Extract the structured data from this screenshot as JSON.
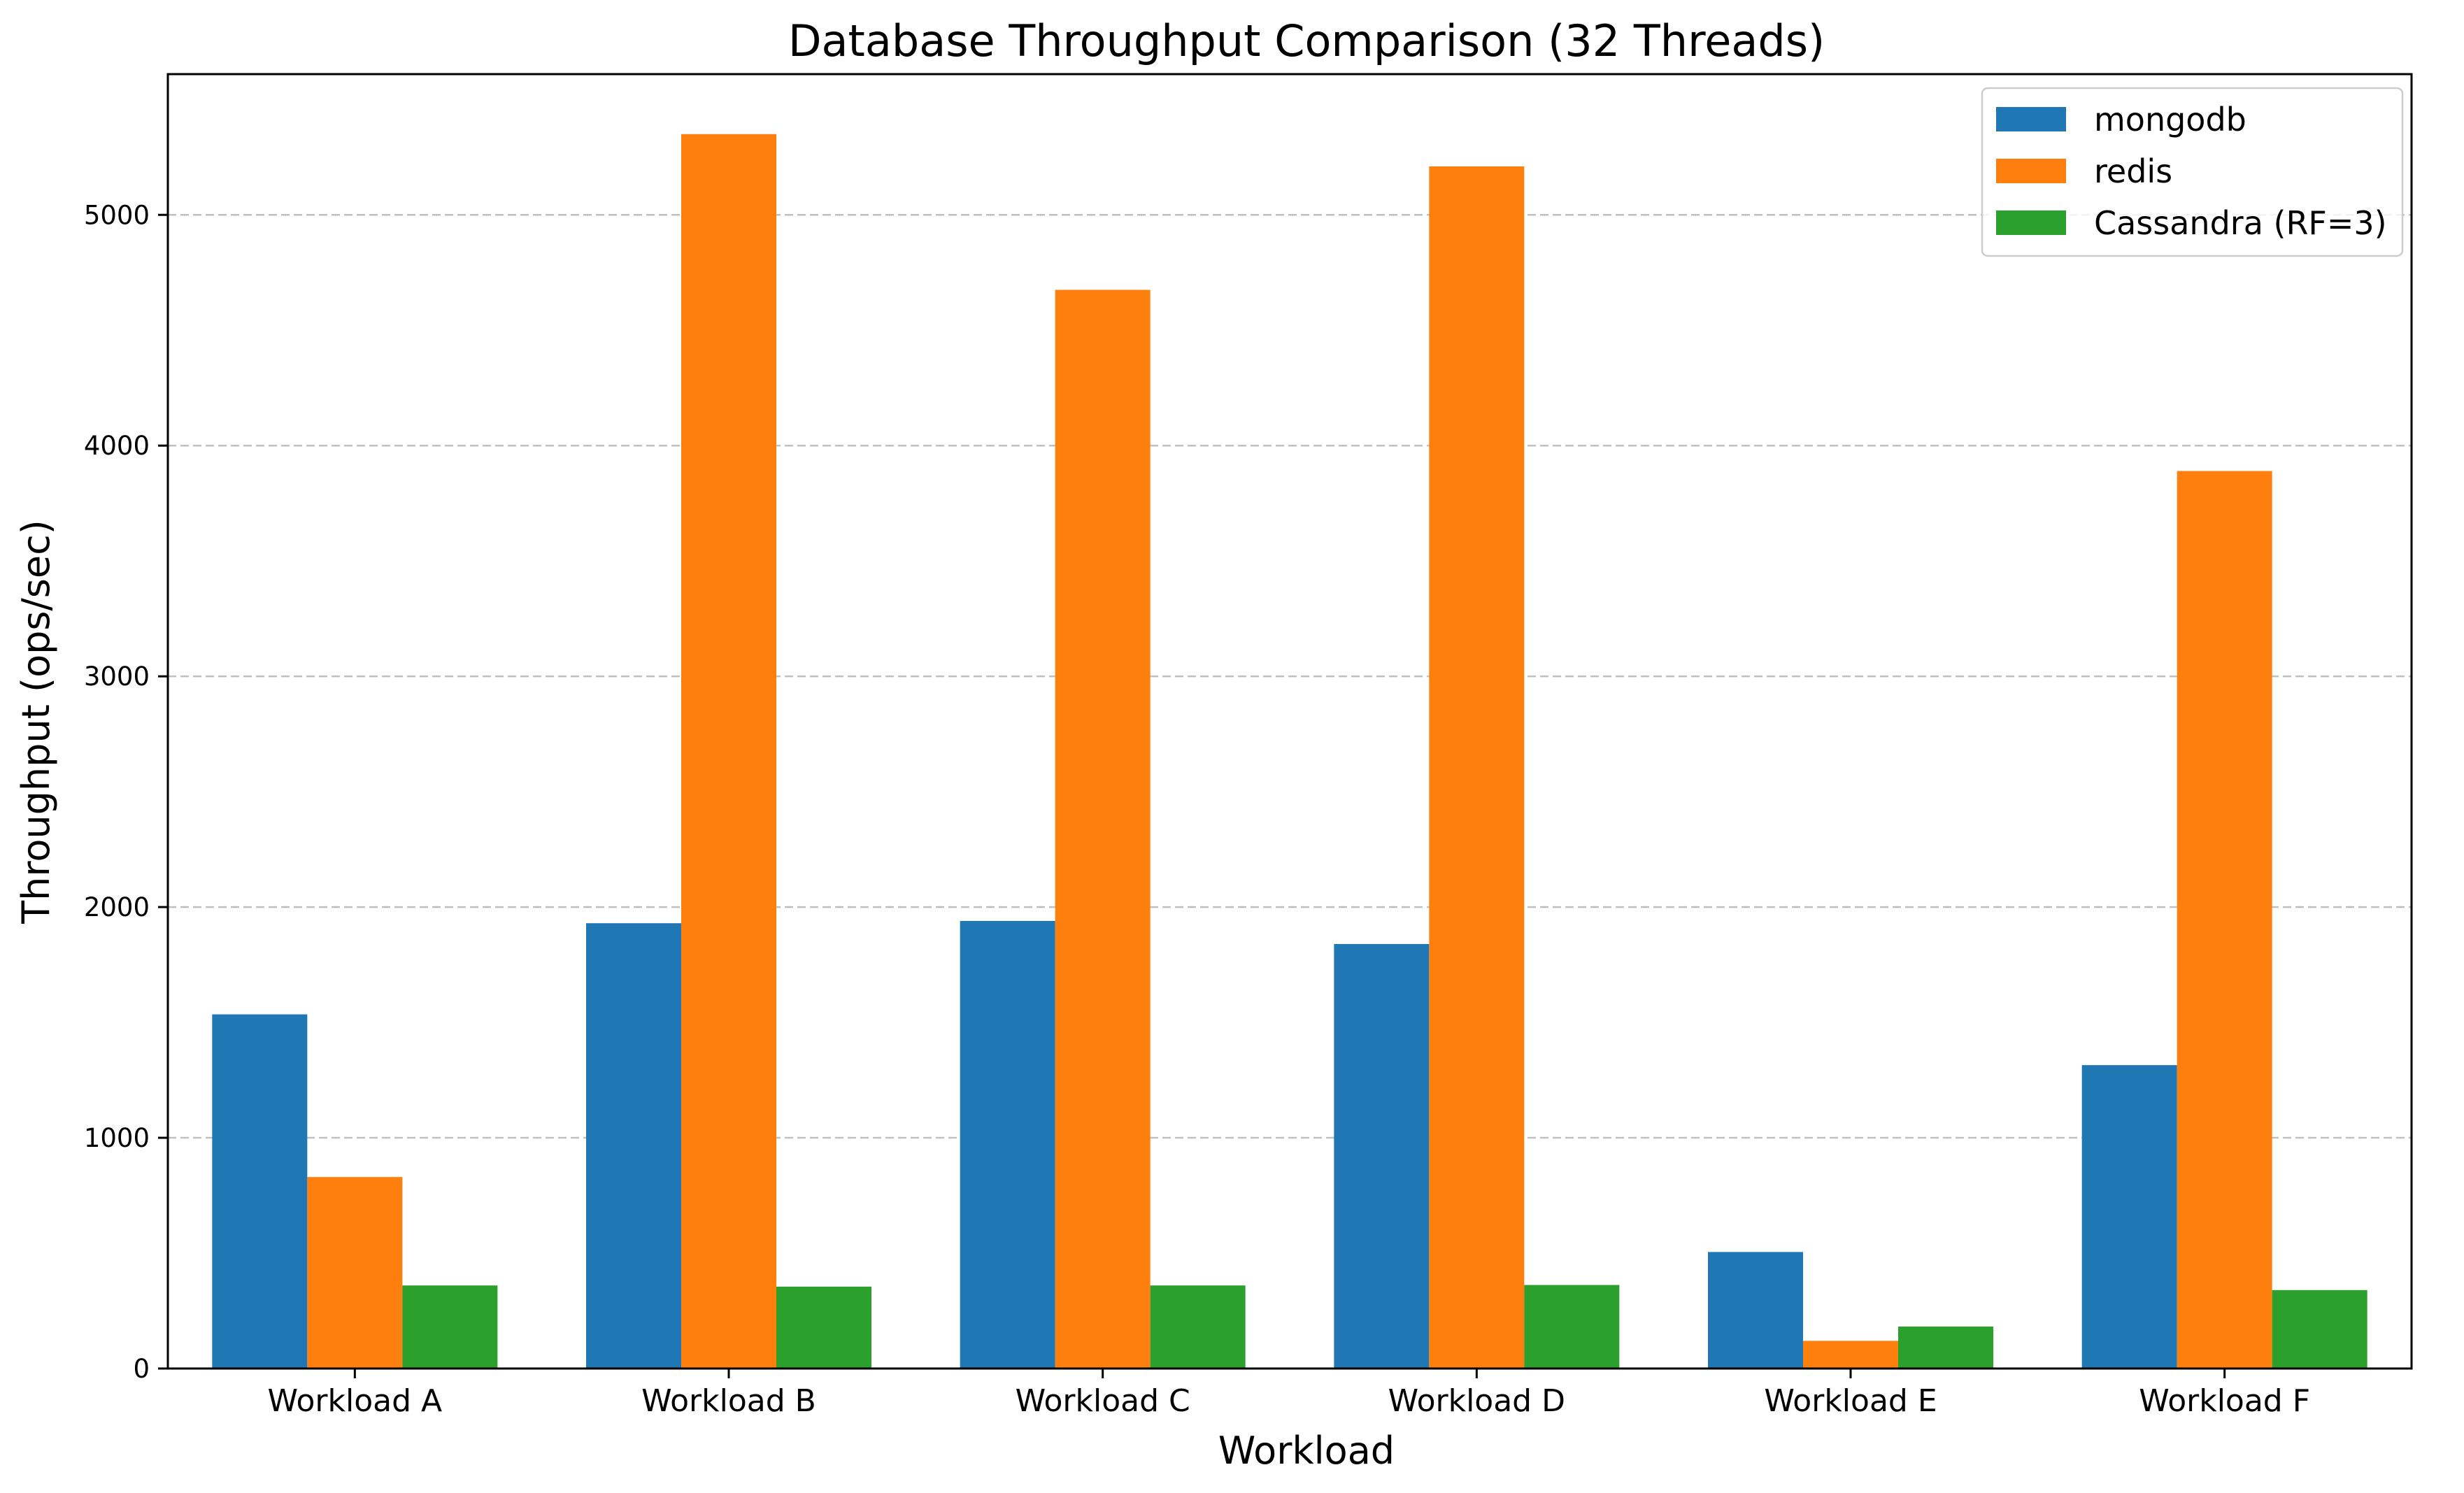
{
  "chart_data": {
    "type": "bar",
    "title": "Database Throughput Comparison (32 Threads)",
    "xlabel": "Workload",
    "ylabel": "Throughput (ops/sec)",
    "categories": [
      "Workload A",
      "Workload B",
      "Workload C",
      "Workload D",
      "Workload E",
      "Workload F"
    ],
    "series": [
      {
        "name": "mongodb",
        "color": "#1f77b4",
        "values": [
          1535,
          1930,
          1940,
          1840,
          505,
          1315
        ]
      },
      {
        "name": "redis",
        "color": "#ff7f0e",
        "values": [
          830,
          5350,
          4675,
          5210,
          120,
          3890
        ]
      },
      {
        "name": "Cassandra (RF=3)",
        "color": "#2ca02c",
        "values": [
          360,
          355,
          360,
          362,
          182,
          340
        ]
      }
    ],
    "ylim": [
      0,
      5610
    ],
    "yticks": [
      0,
      1000,
      2000,
      3000,
      4000,
      5000
    ],
    "grid": "y-dashed",
    "legend_position": "top-right"
  }
}
